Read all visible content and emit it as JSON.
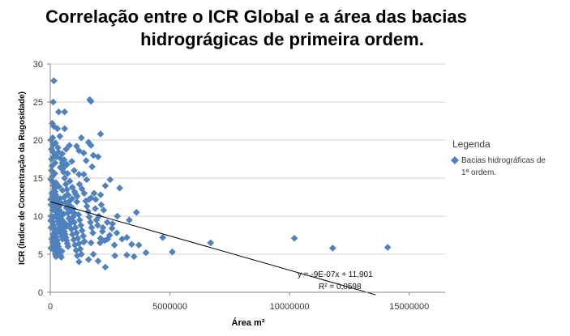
{
  "chart_data": {
    "type": "scatter",
    "title_lines": [
      "Correlação entre o ICR Global e a área das bacias",
      "hidrográgicas de primeira ordem."
    ],
    "xlabel": "Área m²",
    "ylabel": "ICR (Índice de Concentração da Rugosidade)",
    "xlim": [
      0,
      16500000
    ],
    "ylim": [
      0,
      30
    ],
    "x_ticks": [
      0,
      5000000,
      10000000,
      15000000
    ],
    "y_ticks": [
      0,
      5,
      10,
      15,
      20,
      25,
      30
    ],
    "grid": "horizontal",
    "legend": {
      "title": "Legenda",
      "placement": "right",
      "entries": [
        "Bacias hidrográficas de 1ª ordem."
      ]
    },
    "series": [
      {
        "name": "Bacias hidrográficas de 1ª ordem.",
        "color": "#4f81bd",
        "marker": "diamond",
        "points": [
          [
            150000,
            27.8
          ],
          [
            120000,
            25.0
          ],
          [
            350000,
            23.7
          ],
          [
            600000,
            23.7
          ],
          [
            1650000,
            25.3
          ],
          [
            1700000,
            25.1
          ],
          [
            2100000,
            20.8
          ],
          [
            80000,
            22.2
          ],
          [
            150000,
            21.8
          ],
          [
            300000,
            21.5
          ],
          [
            600000,
            21.5
          ],
          [
            100000,
            20.3
          ],
          [
            30000,
            20.0
          ],
          [
            400000,
            20.5
          ],
          [
            1300000,
            20.3
          ],
          [
            1600000,
            19.7
          ],
          [
            1700000,
            19.3
          ],
          [
            800000,
            19.3
          ],
          [
            1100000,
            19.2
          ],
          [
            1200000,
            18.6
          ],
          [
            1400000,
            18.3
          ],
          [
            1800000,
            18.0
          ],
          [
            2000000,
            17.8
          ],
          [
            1750000,
            16.5
          ],
          [
            1500000,
            17.3
          ],
          [
            50000,
            17.5
          ],
          [
            200000,
            17.0
          ],
          [
            500000,
            17.0
          ],
          [
            700000,
            16.8
          ],
          [
            900000,
            17.2
          ],
          [
            1000000,
            16.0
          ],
          [
            1200000,
            15.5
          ],
          [
            1400000,
            15.5
          ],
          [
            2500000,
            14.8
          ],
          [
            2300000,
            14.0
          ],
          [
            2900000,
            13.7
          ],
          [
            2100000,
            12.8
          ],
          [
            1900000,
            12.2
          ],
          [
            1700000,
            12.4
          ],
          [
            3600000,
            10.5
          ],
          [
            2800000,
            10.0
          ],
          [
            3300000,
            9.5
          ],
          [
            2600000,
            9.0
          ],
          [
            2200000,
            8.5
          ],
          [
            4700000,
            7.2
          ],
          [
            3200000,
            7.2
          ],
          [
            3000000,
            7.0
          ],
          [
            3700000,
            6.2
          ],
          [
            3400000,
            6.3
          ],
          [
            4000000,
            5.2
          ],
          [
            3500000,
            4.7
          ],
          [
            5100000,
            5.3
          ],
          [
            3200000,
            4.9
          ],
          [
            2700000,
            4.8
          ],
          [
            2300000,
            3.3
          ],
          [
            2000000,
            4.1
          ],
          [
            1600000,
            4.3
          ],
          [
            1200000,
            4.0
          ],
          [
            1800000,
            5.0
          ],
          [
            2100000,
            7.1
          ],
          [
            2400000,
            7.0
          ],
          [
            1700000,
            6.5
          ],
          [
            1400000,
            6.6
          ],
          [
            6700000,
            6.5
          ],
          [
            10200000,
            7.1
          ],
          [
            11800000,
            5.8
          ],
          [
            14100000,
            5.9
          ],
          [
            50000,
            16.0
          ],
          [
            80000,
            15.2
          ],
          [
            110000,
            14.5
          ],
          [
            140000,
            14.0
          ],
          [
            170000,
            13.6
          ],
          [
            200000,
            13.2
          ],
          [
            230000,
            12.8
          ],
          [
            260000,
            12.5
          ],
          [
            290000,
            12.0
          ],
          [
            320000,
            11.6
          ],
          [
            350000,
            11.2
          ],
          [
            380000,
            10.8
          ],
          [
            410000,
            10.5
          ],
          [
            440000,
            10.0
          ],
          [
            470000,
            9.6
          ],
          [
            500000,
            9.2
          ],
          [
            530000,
            8.8
          ],
          [
            560000,
            8.4
          ],
          [
            590000,
            8.0
          ],
          [
            620000,
            7.6
          ],
          [
            650000,
            7.2
          ],
          [
            680000,
            6.8
          ],
          [
            710000,
            6.4
          ],
          [
            740000,
            6.0
          ],
          [
            60000,
            13.0
          ],
          [
            90000,
            12.6
          ],
          [
            120000,
            12.2
          ],
          [
            150000,
            11.8
          ],
          [
            180000,
            11.4
          ],
          [
            210000,
            11.0
          ],
          [
            240000,
            10.6
          ],
          [
            270000,
            10.2
          ],
          [
            300000,
            9.8
          ],
          [
            330000,
            9.4
          ],
          [
            360000,
            9.0
          ],
          [
            390000,
            8.6
          ],
          [
            420000,
            8.2
          ],
          [
            450000,
            7.8
          ],
          [
            480000,
            7.4
          ],
          [
            510000,
            7.0
          ],
          [
            40000,
            10.0
          ],
          [
            70000,
            9.6
          ],
          [
            100000,
            9.2
          ],
          [
            130000,
            8.8
          ],
          [
            160000,
            8.4
          ],
          [
            190000,
            8.0
          ],
          [
            220000,
            7.6
          ],
          [
            250000,
            7.2
          ],
          [
            280000,
            6.8
          ],
          [
            310000,
            6.4
          ],
          [
            340000,
            6.0
          ],
          [
            370000,
            5.6
          ],
          [
            400000,
            5.2
          ],
          [
            430000,
            4.8
          ],
          [
            460000,
            4.6
          ],
          [
            490000,
            5.4
          ],
          [
            60000,
            7.0
          ],
          [
            90000,
            6.6
          ],
          [
            120000,
            6.2
          ],
          [
            150000,
            5.8
          ],
          [
            180000,
            5.4
          ],
          [
            210000,
            5.0
          ],
          [
            240000,
            4.7
          ],
          [
            270000,
            5.3
          ],
          [
            550000,
            15.8
          ],
          [
            600000,
            15.0
          ],
          [
            650000,
            14.2
          ],
          [
            700000,
            13.5
          ],
          [
            750000,
            12.8
          ],
          [
            800000,
            12.0
          ],
          [
            850000,
            11.3
          ],
          [
            900000,
            10.6
          ],
          [
            950000,
            9.9
          ],
          [
            1000000,
            9.2
          ],
          [
            1050000,
            8.5
          ],
          [
            1100000,
            7.8
          ],
          [
            1150000,
            7.1
          ],
          [
            1200000,
            6.4
          ],
          [
            1250000,
            5.7
          ],
          [
            1300000,
            5.0
          ],
          [
            580000,
            12.5
          ],
          [
            630000,
            11.8
          ],
          [
            680000,
            11.1
          ],
          [
            730000,
            10.4
          ],
          [
            780000,
            9.7
          ],
          [
            830000,
            9.0
          ],
          [
            880000,
            8.3
          ],
          [
            930000,
            7.6
          ],
          [
            980000,
            6.9
          ],
          [
            1030000,
            6.2
          ],
          [
            1080000,
            5.5
          ],
          [
            1130000,
            4.8
          ],
          [
            1180000,
            10.2
          ],
          [
            1230000,
            9.5
          ],
          [
            1280000,
            8.8
          ],
          [
            1330000,
            8.1
          ],
          [
            1380000,
            7.4
          ],
          [
            1430000,
            6.7
          ],
          [
            1480000,
            12.0
          ],
          [
            1530000,
            11.3
          ],
          [
            1580000,
            10.6
          ],
          [
            1630000,
            9.9
          ],
          [
            1680000,
            9.2
          ],
          [
            1730000,
            8.5
          ],
          [
            1780000,
            7.8
          ],
          [
            1830000,
            13.0
          ],
          [
            1880000,
            11.0
          ],
          [
            1930000,
            9.5
          ],
          [
            1980000,
            8.8
          ],
          [
            2030000,
            10.0
          ],
          [
            2080000,
            6.5
          ],
          [
            2130000,
            11.5
          ],
          [
            2180000,
            8.0
          ],
          [
            2230000,
            10.8
          ],
          [
            2280000,
            6.8
          ],
          [
            2380000,
            9.2
          ],
          [
            2480000,
            7.5
          ],
          [
            2580000,
            8.4
          ],
          [
            2680000,
            6.2
          ],
          [
            2780000,
            7.8
          ],
          [
            100000,
            18.5
          ],
          [
            180000,
            18.0
          ],
          [
            260000,
            17.8
          ],
          [
            340000,
            18.4
          ],
          [
            420000,
            17.6
          ],
          [
            500000,
            18.2
          ],
          [
            580000,
            17.4
          ],
          [
            660000,
            18.8
          ],
          [
            120000,
            19.4
          ],
          [
            220000,
            19.6
          ],
          [
            320000,
            19.0
          ],
          [
            420000,
            16.4
          ],
          [
            520000,
            16.2
          ],
          [
            620000,
            16.6
          ],
          [
            720000,
            15.6
          ],
          [
            820000,
            14.6
          ],
          [
            920000,
            13.8
          ],
          [
            1020000,
            13.2
          ],
          [
            1120000,
            12.6
          ],
          [
            1220000,
            14.2
          ],
          [
            1320000,
            13.6
          ],
          [
            1420000,
            13.0
          ],
          [
            1520000,
            14.8
          ],
          [
            1620000,
            12.2
          ],
          [
            30000,
            11.5
          ],
          [
            30000,
            14.8
          ],
          [
            30000,
            8.5
          ],
          [
            30000,
            5.8
          ],
          [
            50000,
            18.8
          ],
          [
            70000,
            16.6
          ],
          [
            20000,
            12.2
          ],
          [
            20000,
            9.4
          ],
          [
            90000,
            10.8
          ],
          [
            110000,
            7.6
          ],
          [
            140000,
            9.9
          ],
          [
            160000,
            12.9
          ],
          [
            190000,
            15.6
          ],
          [
            230000,
            14.4
          ],
          [
            270000,
            11.3
          ],
          [
            310000,
            8.1
          ],
          [
            360000,
            13.9
          ],
          [
            410000,
            12.3
          ],
          [
            460000,
            11.7
          ],
          [
            510000,
            13.4
          ],
          [
            560000,
            10.3
          ],
          [
            610000,
            9.1
          ],
          [
            660000,
            12.7
          ],
          [
            710000,
            8.7
          ],
          [
            760000,
            11.6
          ],
          [
            810000,
            10.9
          ],
          [
            860000,
            9.4
          ],
          [
            910000,
            12.3
          ],
          [
            960000,
            11.0
          ],
          [
            1010000,
            10.4
          ],
          [
            1060000,
            12.9
          ],
          [
            1110000,
            11.9
          ]
        ]
      }
    ],
    "trendline": {
      "slope": -9e-07,
      "intercept": 11.901,
      "x_range": [
        0,
        13600000
      ],
      "equation": "y = -9E-07x + 11,901",
      "r2": "R² = 0,0598"
    }
  }
}
